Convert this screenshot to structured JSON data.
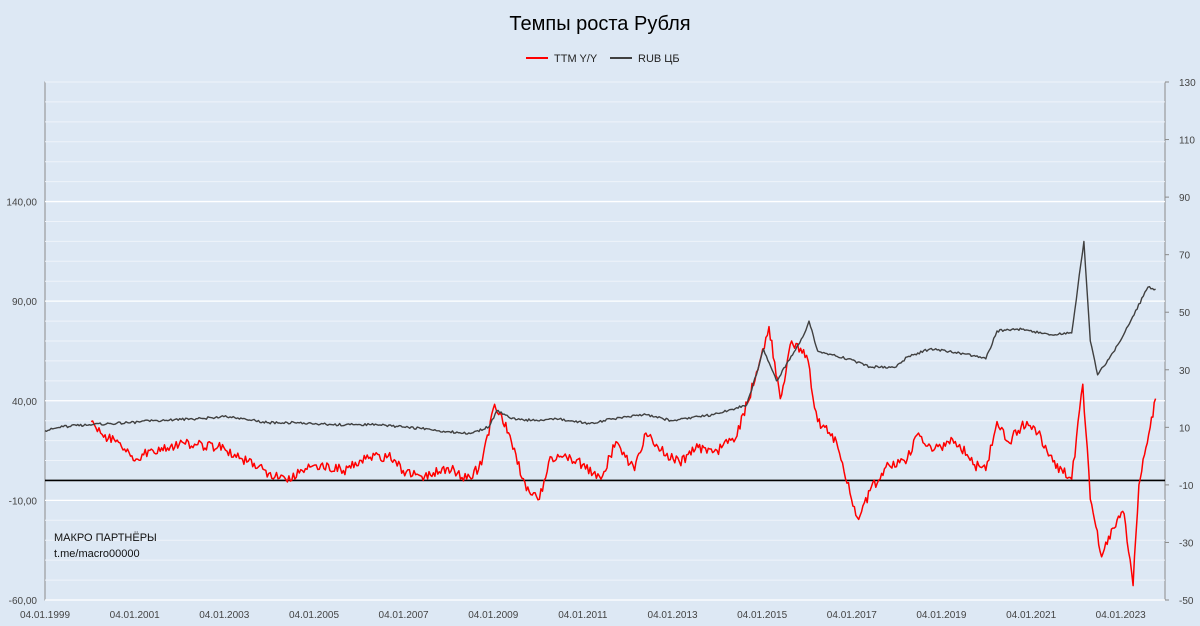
{
  "chart_data": {
    "type": "line",
    "title": "Темпы роста Рубля",
    "legend": {
      "placement": "top-center",
      "entries": [
        {
          "label": "TTM Y/Y",
          "color": "#ff0000"
        },
        {
          "label": "RUB ЦБ",
          "color": "#404040"
        }
      ]
    },
    "x_axis": {
      "type": "date",
      "range": [
        "1999-01-04",
        "2023-12-31"
      ],
      "tick_labels": [
        "04.01.1999",
        "04.01.2001",
        "04.01.2003",
        "04.01.2005",
        "04.01.2007",
        "04.01.2009",
        "04.01.2011",
        "04.01.2013",
        "04.01.2015",
        "04.01.2017",
        "04.01.2019",
        "04.01.2021",
        "04.01.2023"
      ]
    },
    "y_left": {
      "range": [
        -60,
        200
      ],
      "ticks": [
        -60,
        -10,
        40,
        90,
        140
      ],
      "tick_labels": [
        "-60,00",
        "-10,00",
        "40,00",
        "90,00",
        "140,00"
      ]
    },
    "y_right": {
      "range": [
        -50,
        130
      ],
      "ticks": [
        -50,
        -30,
        -10,
        10,
        30,
        50,
        70,
        90,
        110,
        130
      ],
      "tick_labels": [
        "-50",
        "-30",
        "-10",
        "10",
        "30",
        "50",
        "70",
        "90",
        "110",
        "130"
      ]
    },
    "grid": true,
    "zero_line_left": 0,
    "series": [
      {
        "name": "TTM Y/Y",
        "axis": "right",
        "color": "#ff0000",
        "points": [
          [
            "2000-01-15",
            12
          ],
          [
            "2000-04-01",
            8
          ],
          [
            "2000-08-01",
            5
          ],
          [
            "2000-12-01",
            0
          ],
          [
            "2001-01-15",
            -1
          ],
          [
            "2001-06-01",
            2
          ],
          [
            "2002-01-01",
            4
          ],
          [
            "2002-06-01",
            4
          ],
          [
            "2003-01-01",
            3
          ],
          [
            "2003-06-01",
            -1
          ],
          [
            "2004-01-01",
            -6
          ],
          [
            "2004-06-01",
            -9
          ],
          [
            "2004-10-01",
            -5
          ],
          [
            "2005-03-01",
            -3
          ],
          [
            "2005-09-01",
            -5
          ],
          [
            "2006-03-01",
            -1
          ],
          [
            "2006-09-01",
            0
          ],
          [
            "2007-01-01",
            -5
          ],
          [
            "2007-06-01",
            -7
          ],
          [
            "2008-01-01",
            -4
          ],
          [
            "2008-06-01",
            -8
          ],
          [
            "2008-10-01",
            -3
          ],
          [
            "2009-01-15",
            18
          ],
          [
            "2009-03-01",
            15
          ],
          [
            "2009-06-01",
            5
          ],
          [
            "2009-10-01",
            -12
          ],
          [
            "2010-01-15",
            -15
          ],
          [
            "2010-04-01",
            -2
          ],
          [
            "2010-08-01",
            0
          ],
          [
            "2011-01-01",
            -3
          ],
          [
            "2011-06-01",
            -8
          ],
          [
            "2011-10-01",
            5
          ],
          [
            "2012-03-01",
            -5
          ],
          [
            "2012-06-01",
            8
          ],
          [
            "2012-10-01",
            2
          ],
          [
            "2013-03-01",
            -2
          ],
          [
            "2013-08-01",
            3
          ],
          [
            "2014-01-01",
            2
          ],
          [
            "2014-06-01",
            6
          ],
          [
            "2014-12-01",
            30
          ],
          [
            "2015-03-01",
            45
          ],
          [
            "2015-06-01",
            20
          ],
          [
            "2015-09-01",
            40
          ],
          [
            "2016-01-01",
            35
          ],
          [
            "2016-04-01",
            12
          ],
          [
            "2016-09-01",
            5
          ],
          [
            "2017-01-01",
            -15
          ],
          [
            "2017-03-01",
            -22
          ],
          [
            "2017-06-01",
            -12
          ],
          [
            "2017-11-01",
            -3
          ],
          [
            "2018-04-01",
            -1
          ],
          [
            "2018-07-01",
            8
          ],
          [
            "2018-11-01",
            2
          ],
          [
            "2019-03-01",
            5
          ],
          [
            "2019-06-01",
            4
          ],
          [
            "2019-10-01",
            -3
          ],
          [
            "2020-01-01",
            -5
          ],
          [
            "2020-04-01",
            12
          ],
          [
            "2020-07-01",
            5
          ],
          [
            "2020-12-01",
            12
          ],
          [
            "2021-03-01",
            8
          ],
          [
            "2021-07-01",
            -2
          ],
          [
            "2021-12-01",
            -8
          ],
          [
            "2022-03-01",
            25
          ],
          [
            "2022-05-01",
            -15
          ],
          [
            "2022-08-01",
            -35
          ],
          [
            "2022-11-01",
            -25
          ],
          [
            "2023-02-01",
            -20
          ],
          [
            "2023-04-15",
            -45
          ],
          [
            "2023-06-01",
            -10
          ],
          [
            "2023-09-01",
            10
          ],
          [
            "2023-10-15",
            20
          ]
        ]
      },
      {
        "name": "RUB ЦБ",
        "axis": "left",
        "color": "#404040",
        "points": [
          [
            "1999-01-04",
            25
          ],
          [
            "1999-06-01",
            27
          ],
          [
            "2000-01-01",
            28
          ],
          [
            "2000-12-01",
            29
          ],
          [
            "2001-06-01",
            30
          ],
          [
            "2002-06-01",
            31
          ],
          [
            "2003-01-01",
            32
          ],
          [
            "2003-06-01",
            31
          ],
          [
            "2004-01-01",
            29
          ],
          [
            "2004-08-01",
            29
          ],
          [
            "2005-06-01",
            28
          ],
          [
            "2006-06-01",
            28
          ],
          [
            "2007-06-01",
            26
          ],
          [
            "2008-01-01",
            24.5
          ],
          [
            "2008-07-01",
            23.5
          ],
          [
            "2008-12-01",
            27
          ],
          [
            "2009-02-01",
            35
          ],
          [
            "2009-06-01",
            31
          ],
          [
            "2010-01-01",
            30
          ],
          [
            "2010-06-01",
            31
          ],
          [
            "2011-03-01",
            28.5
          ],
          [
            "2011-12-01",
            32
          ],
          [
            "2012-06-01",
            33
          ],
          [
            "2013-01-01",
            30
          ],
          [
            "2013-12-01",
            33
          ],
          [
            "2014-04-01",
            35
          ],
          [
            "2014-09-01",
            38
          ],
          [
            "2014-12-01",
            56
          ],
          [
            "2015-01-15",
            66
          ],
          [
            "2015-05-01",
            50
          ],
          [
            "2015-12-01",
            72
          ],
          [
            "2016-01-21",
            80
          ],
          [
            "2016-04-01",
            65
          ],
          [
            "2016-12-01",
            61
          ],
          [
            "2017-06-01",
            57
          ],
          [
            "2018-01-01",
            57
          ],
          [
            "2018-04-01",
            62
          ],
          [
            "2018-10-01",
            66
          ],
          [
            "2019-06-01",
            64
          ],
          [
            "2020-01-01",
            61
          ],
          [
            "2020-04-01",
            75
          ],
          [
            "2020-11-01",
            76
          ],
          [
            "2021-06-01",
            73
          ],
          [
            "2021-12-01",
            74
          ],
          [
            "2022-03-10",
            120
          ],
          [
            "2022-05-01",
            70
          ],
          [
            "2022-06-30",
            53
          ],
          [
            "2022-10-01",
            61
          ],
          [
            "2023-01-01",
            70
          ],
          [
            "2023-08-14",
            97
          ],
          [
            "2023-10-15",
            96
          ]
        ]
      }
    ],
    "annotations": [
      "МАКРО ПАРТНЁРЫ",
      "t.me/macro00000"
    ]
  }
}
